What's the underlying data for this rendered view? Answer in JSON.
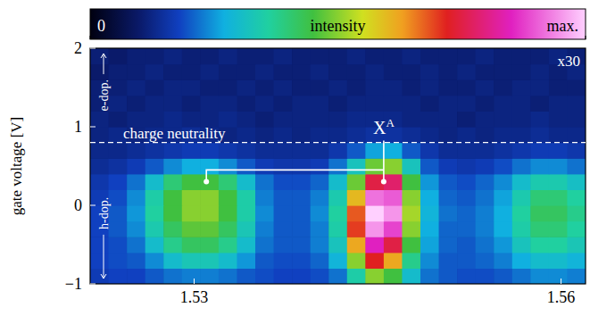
{
  "chart_data": {
    "type": "heatmap",
    "y_label": "gate voltage [V]",
    "xlim": [
      1.5215,
      1.562
    ],
    "ylim": [
      -1,
      2
    ],
    "xticks": [
      1.53,
      1.56
    ],
    "yticks": [
      2,
      1,
      0,
      {
        "value": -1,
        "label": "−1"
      }
    ],
    "x": [
      1.52225,
      1.52375,
      1.52525,
      1.52675,
      1.52825,
      1.52975,
      1.53125,
      1.53275,
      1.53425,
      1.53575,
      1.53725,
      1.53875,
      1.54025,
      1.54175,
      1.54325,
      1.54475,
      1.54625,
      1.54775,
      1.54925,
      1.55075,
      1.55225,
      1.55375,
      1.55525,
      1.55675,
      1.55825,
      1.55975,
      1.56125
    ],
    "y": [
      -0.9,
      -0.7,
      -0.5,
      -0.3,
      -0.1,
      0.1,
      0.3,
      0.5,
      0.7,
      0.9,
      1.1,
      1.3,
      1.5,
      1.7,
      1.9
    ],
    "cells": [
      [
        0.17,
        0.18,
        0.18,
        0.2,
        0.22,
        0.23,
        0.23,
        0.22,
        0.2,
        0.19,
        0.18,
        0.18,
        0.19,
        0.22,
        0.35,
        0.5,
        0.45,
        0.3,
        0.22,
        0.2,
        0.19,
        0.19,
        0.2,
        0.22,
        0.24,
        0.24,
        0.23
      ],
      [
        0.18,
        0.19,
        0.2,
        0.24,
        0.3,
        0.33,
        0.33,
        0.3,
        0.25,
        0.2,
        0.19,
        0.19,
        0.21,
        0.28,
        0.5,
        0.72,
        0.62,
        0.38,
        0.24,
        0.2,
        0.2,
        0.21,
        0.23,
        0.27,
        0.3,
        0.3,
        0.28
      ],
      [
        0.18,
        0.19,
        0.22,
        0.3,
        0.38,
        0.42,
        0.42,
        0.38,
        0.3,
        0.22,
        0.2,
        0.2,
        0.23,
        0.32,
        0.62,
        0.85,
        0.75,
        0.45,
        0.26,
        0.21,
        0.2,
        0.22,
        0.25,
        0.32,
        0.36,
        0.36,
        0.33
      ],
      [
        0.18,
        0.2,
        0.24,
        0.34,
        0.42,
        0.47,
        0.47,
        0.42,
        0.33,
        0.23,
        0.2,
        0.2,
        0.23,
        0.35,
        0.7,
        0.95,
        0.88,
        0.5,
        0.27,
        0.21,
        0.21,
        0.23,
        0.27,
        0.35,
        0.4,
        0.4,
        0.36
      ],
      [
        0.18,
        0.2,
        0.25,
        0.36,
        0.45,
        0.5,
        0.5,
        0.45,
        0.35,
        0.24,
        0.2,
        0.2,
        0.24,
        0.36,
        0.68,
        1.0,
        0.95,
        0.52,
        0.28,
        0.22,
        0.21,
        0.23,
        0.27,
        0.36,
        0.42,
        0.42,
        0.38
      ],
      [
        0.17,
        0.19,
        0.24,
        0.35,
        0.45,
        0.5,
        0.5,
        0.45,
        0.35,
        0.23,
        0.2,
        0.2,
        0.23,
        0.34,
        0.6,
        0.92,
        0.9,
        0.5,
        0.27,
        0.21,
        0.2,
        0.22,
        0.26,
        0.34,
        0.4,
        0.4,
        0.36
      ],
      [
        0.16,
        0.18,
        0.22,
        0.3,
        0.4,
        0.45,
        0.45,
        0.4,
        0.3,
        0.22,
        0.19,
        0.19,
        0.21,
        0.3,
        0.48,
        0.75,
        0.78,
        0.45,
        0.25,
        0.2,
        0.19,
        0.21,
        0.24,
        0.3,
        0.34,
        0.34,
        0.31
      ],
      [
        0.14,
        0.15,
        0.17,
        0.2,
        0.24,
        0.27,
        0.27,
        0.24,
        0.2,
        0.17,
        0.16,
        0.16,
        0.17,
        0.22,
        0.32,
        0.48,
        0.5,
        0.32,
        0.2,
        0.17,
        0.16,
        0.17,
        0.19,
        0.22,
        0.24,
        0.24,
        0.22
      ],
      [
        0.13,
        0.13,
        0.14,
        0.15,
        0.16,
        0.17,
        0.17,
        0.16,
        0.15,
        0.14,
        0.14,
        0.14,
        0.14,
        0.16,
        0.2,
        0.26,
        0.27,
        0.2,
        0.16,
        0.14,
        0.14,
        0.14,
        0.15,
        0.16,
        0.17,
        0.17,
        0.16
      ],
      [
        0.12,
        0.13,
        0.12,
        0.13,
        0.13,
        0.14,
        0.13,
        0.12,
        0.13,
        0.12,
        0.13,
        0.12,
        0.13,
        0.13,
        0.14,
        0.15,
        0.15,
        0.14,
        0.13,
        0.12,
        0.13,
        0.12,
        0.13,
        0.13,
        0.14,
        0.13,
        0.13
      ],
      [
        0.12,
        0.11,
        0.12,
        0.12,
        0.13,
        0.12,
        0.12,
        0.13,
        0.12,
        0.11,
        0.12,
        0.12,
        0.12,
        0.12,
        0.13,
        0.13,
        0.13,
        0.12,
        0.12,
        0.12,
        0.11,
        0.12,
        0.12,
        0.12,
        0.13,
        0.12,
        0.12
      ],
      [
        0.11,
        0.12,
        0.11,
        0.12,
        0.12,
        0.11,
        0.12,
        0.12,
        0.11,
        0.12,
        0.11,
        0.12,
        0.12,
        0.11,
        0.12,
        0.12,
        0.12,
        0.12,
        0.11,
        0.12,
        0.12,
        0.11,
        0.12,
        0.12,
        0.11,
        0.12,
        0.12
      ],
      [
        0.11,
        0.11,
        0.12,
        0.11,
        0.12,
        0.12,
        0.11,
        0.11,
        0.12,
        0.11,
        0.12,
        0.11,
        0.11,
        0.12,
        0.11,
        0.12,
        0.12,
        0.11,
        0.12,
        0.11,
        0.11,
        0.12,
        0.11,
        0.12,
        0.12,
        0.11,
        0.11
      ],
      [
        0.1,
        0.11,
        0.11,
        0.12,
        0.11,
        0.11,
        0.12,
        0.11,
        0.11,
        0.12,
        0.11,
        0.11,
        0.12,
        0.11,
        0.11,
        0.12,
        0.11,
        0.11,
        0.12,
        0.11,
        0.12,
        0.11,
        0.11,
        0.11,
        0.12,
        0.11,
        0.12
      ],
      [
        0.11,
        0.1,
        0.11,
        0.11,
        0.12,
        0.11,
        0.11,
        0.12,
        0.11,
        0.11,
        0.12,
        0.11,
        0.11,
        0.11,
        0.12,
        0.11,
        0.11,
        0.12,
        0.11,
        0.11,
        0.11,
        0.12,
        0.11,
        0.11,
        0.11,
        0.12,
        0.11
      ]
    ],
    "colorbar": {
      "label": "intensity",
      "range": [
        0,
        1
      ],
      "ticks": [
        0,
        {
          "value": 1,
          "label": "max."
        }
      ]
    },
    "note": "x30",
    "reference_line": {
      "y": 0.8,
      "label": "charge neutrality"
    },
    "regions": [
      {
        "label": "e-dop.",
        "from": 0.8,
        "to": 2
      },
      {
        "label": "h-dop.",
        "from": -1,
        "to": 0.8
      }
    ],
    "peak_label": {
      "text": "X",
      "superscript": "A",
      "bracket_y": 0.45,
      "points": [
        {
          "x": 1.531,
          "y": 0.3
        },
        {
          "x": 1.5455,
          "y": 0.3
        }
      ]
    }
  }
}
